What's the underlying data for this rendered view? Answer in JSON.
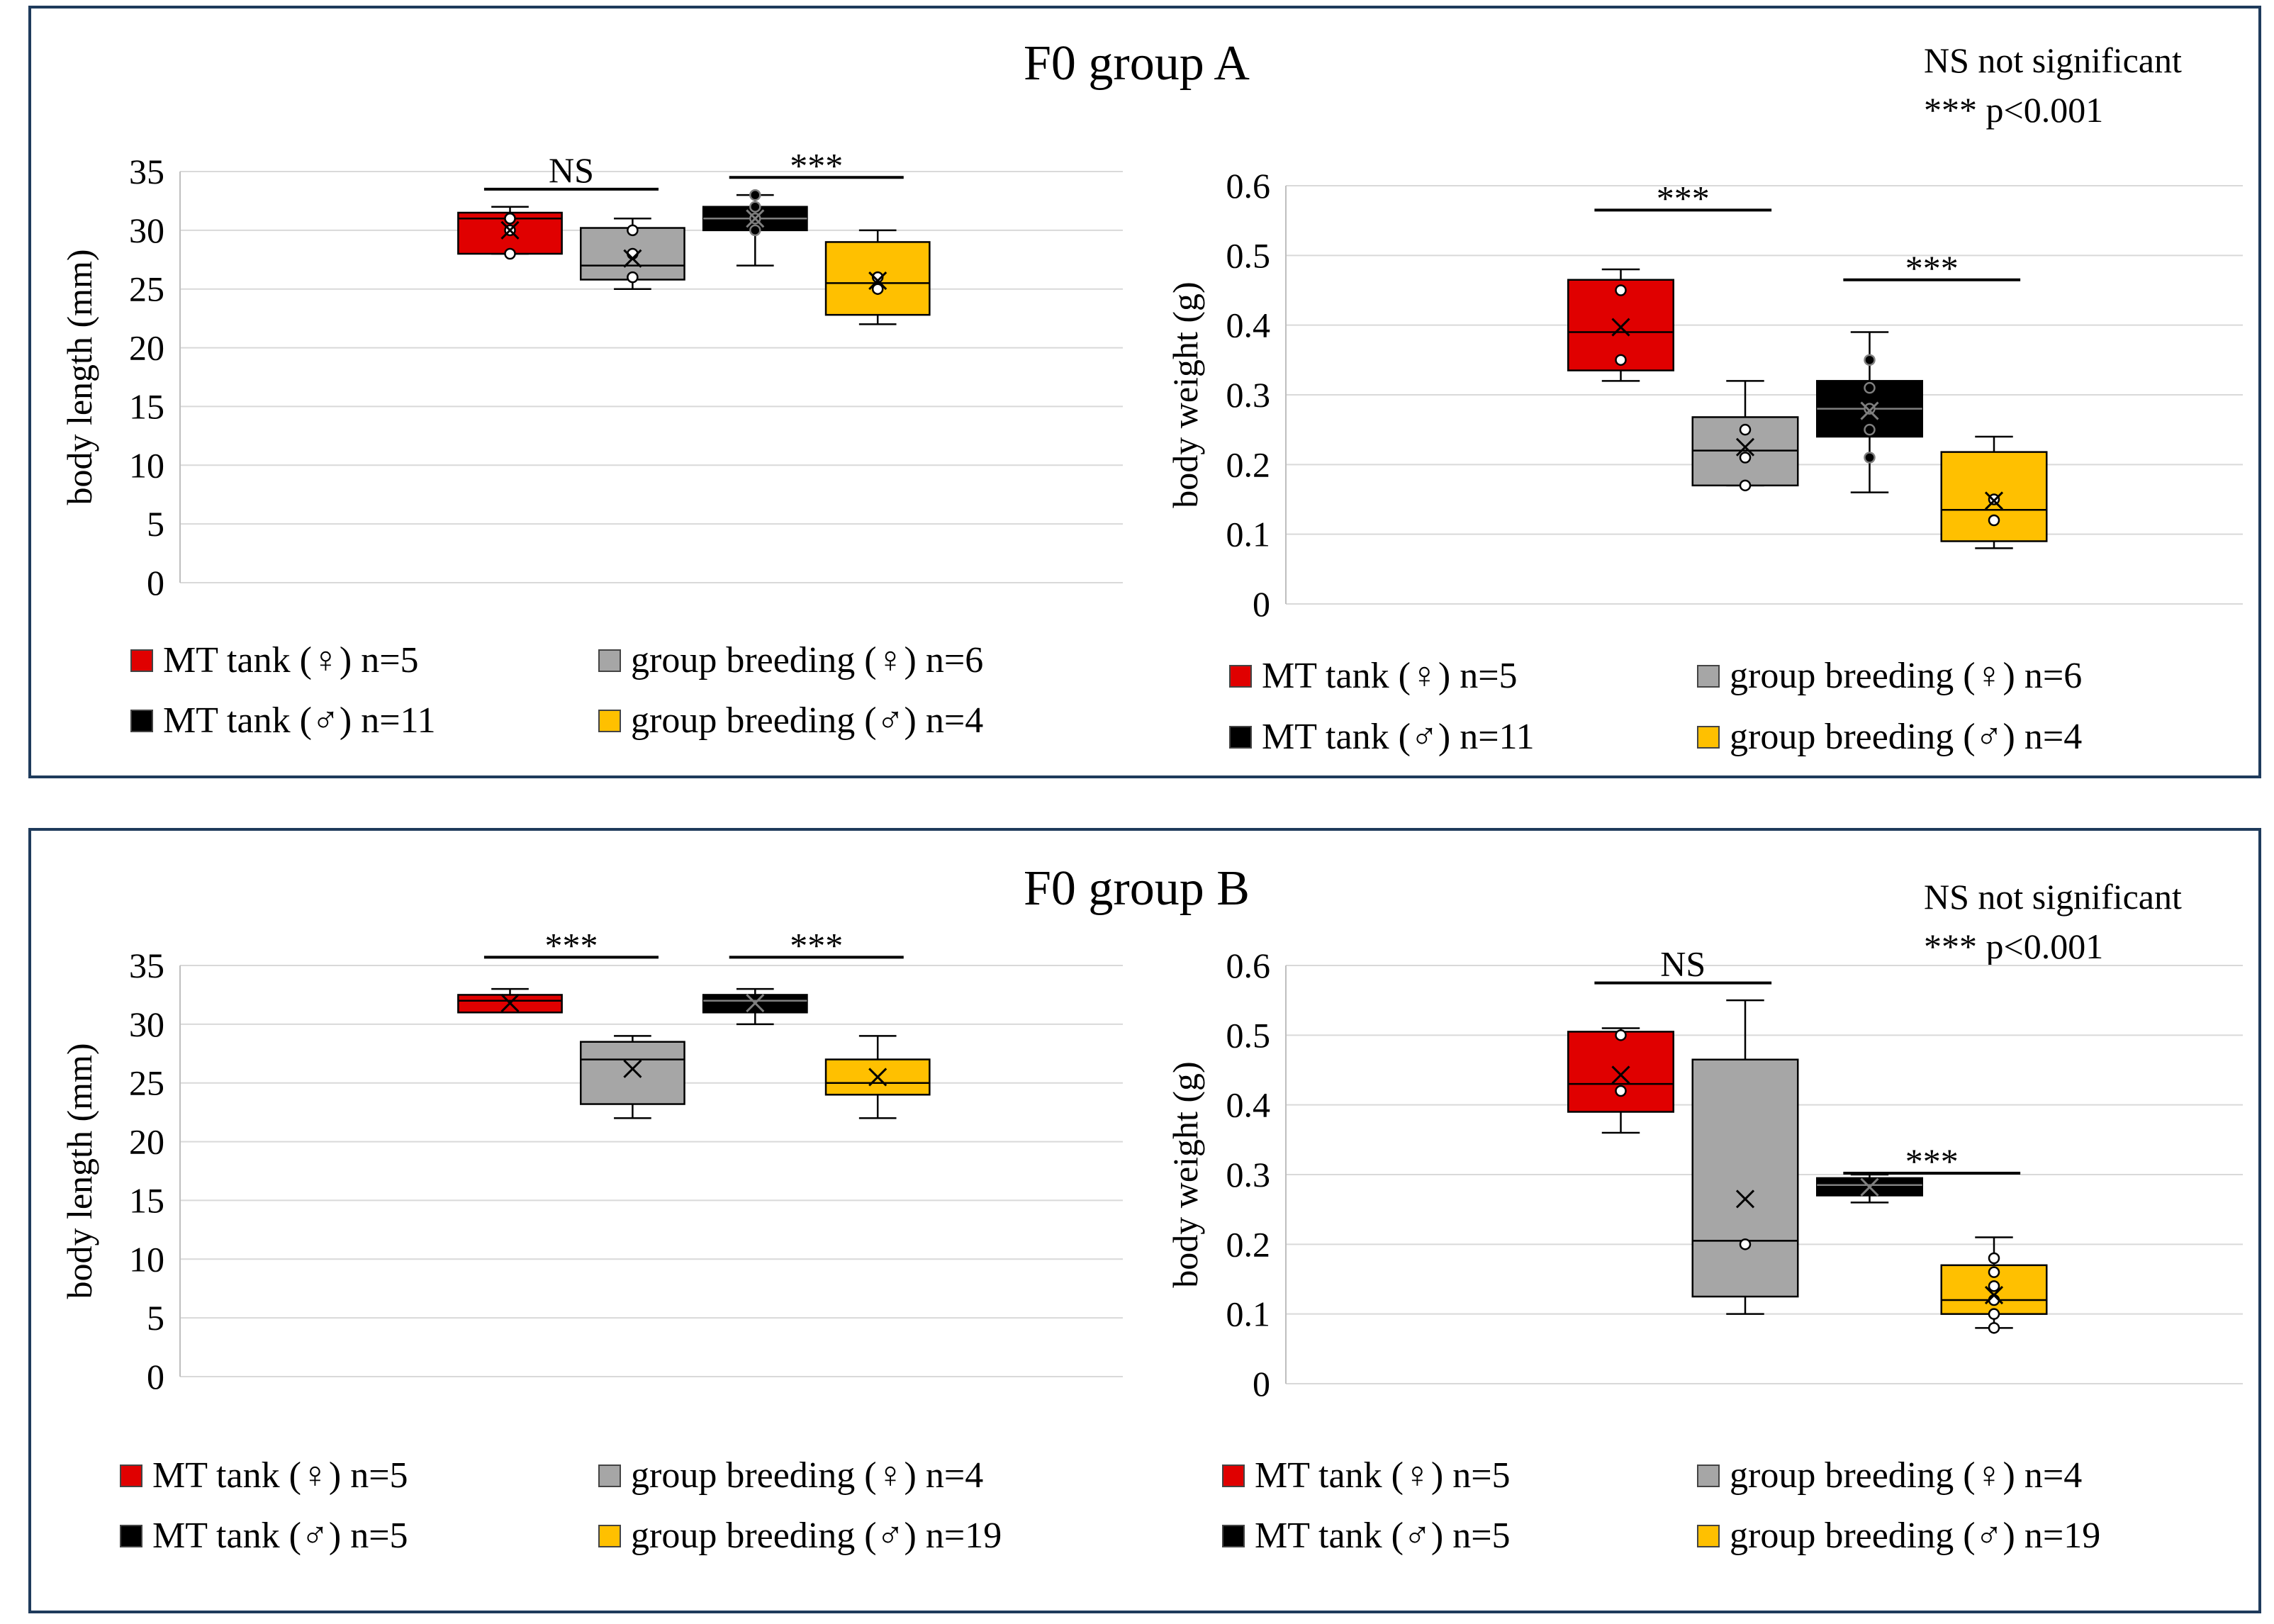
{
  "colors": {
    "red": "#e00000",
    "gray": "#a6a6a6",
    "black": "#000000",
    "yellow": "#ffc000",
    "frame": "#1f3b5c"
  },
  "panels": [
    {
      "title": "F0 group A",
      "note_ns": "NS not significant",
      "note_p": "*** p<0.001",
      "legend_len": [
        "MT tank (♀) n=5",
        "group breeding (♀) n=6",
        "MT tank (♂) n=11",
        "group breeding (♂) n=4"
      ],
      "legend_wt": [
        "MT tank (♀) n=5",
        "group breeding (♀) n=6",
        "MT tank (♂) n=11",
        "group breeding (♂) n=4"
      ]
    },
    {
      "title": "F0 group B",
      "note_ns": "NS not significant",
      "note_p": "*** p<0.001",
      "legend_len": [
        "MT tank (♀) n=5",
        "group breeding (♀) n=4",
        "MT tank (♂) n=5",
        "group breeding (♂) n=19"
      ],
      "legend_wt": [
        "MT tank (♀) n=5",
        "group breeding (♀) n=4",
        "MT tank (♂) n=5",
        "group breeding (♂) n=19"
      ]
    }
  ],
  "chart_data": [
    {
      "id": "A-length",
      "type": "box",
      "panel": "F0 group A",
      "ylabel": "body length (mm)",
      "ylim": [
        0,
        35
      ],
      "yticks": [
        "0",
        "5",
        "10",
        "15",
        "20",
        "25",
        "30",
        "35"
      ],
      "yticks_values": [
        0,
        5,
        10,
        15,
        20,
        25,
        30,
        35
      ],
      "boxes": [
        {
          "color": "red",
          "min": 28,
          "q1": 28,
          "median": 31,
          "q3": 31.5,
          "max": 32,
          "mean": 30,
          "points": [
            28,
            30,
            31,
            31
          ]
        },
        {
          "color": "gray",
          "min": 25,
          "q1": 25.8,
          "median": 27,
          "q3": 30.2,
          "max": 31,
          "mean": 27.6,
          "points": [
            26,
            28,
            30
          ]
        },
        {
          "color": "black",
          "min": 27,
          "q1": 30,
          "median": 31,
          "q3": 32,
          "max": 33,
          "mean": 31,
          "points": [
            30,
            31,
            32,
            33
          ]
        },
        {
          "color": "yellow",
          "min": 22,
          "q1": 22.8,
          "median": 25.5,
          "q3": 29,
          "max": 30,
          "mean": 25.7,
          "points": [
            25,
            26
          ]
        }
      ],
      "sig": [
        {
          "label": "NS",
          "from": 0,
          "to": 1,
          "y": 33.5
        },
        {
          "label": "***",
          "from": 2,
          "to": 3,
          "y": 34.5
        }
      ]
    },
    {
      "id": "A-weight",
      "type": "box",
      "panel": "F0 group A",
      "ylabel": "body weight (g)",
      "ylim": [
        0,
        0.6
      ],
      "yticks": [
        "0",
        "0.1",
        "0.2",
        "0.3",
        "0.4",
        "0.5",
        "0.6"
      ],
      "yticks_values": [
        0,
        0.1,
        0.2,
        0.3,
        0.4,
        0.5,
        0.6
      ],
      "boxes": [
        {
          "color": "red",
          "min": 0.32,
          "q1": 0.335,
          "median": 0.39,
          "q3": 0.465,
          "max": 0.48,
          "mean": 0.397,
          "points": [
            0.35,
            0.45
          ]
        },
        {
          "color": "gray",
          "min": 0.17,
          "q1": 0.17,
          "median": 0.22,
          "q3": 0.268,
          "max": 0.32,
          "mean": 0.225,
          "points": [
            0.17,
            0.21,
            0.25
          ]
        },
        {
          "color": "black",
          "min": 0.16,
          "q1": 0.24,
          "median": 0.28,
          "q3": 0.32,
          "max": 0.39,
          "mean": 0.277,
          "points": [
            0.21,
            0.25,
            0.28,
            0.31,
            0.35
          ]
        },
        {
          "color": "yellow",
          "min": 0.08,
          "q1": 0.09,
          "median": 0.135,
          "q3": 0.218,
          "max": 0.24,
          "mean": 0.148,
          "points": [
            0.12,
            0.15
          ]
        }
      ],
      "sig": [
        {
          "label": "***",
          "from": 0,
          "to": 1,
          "y": 0.565
        },
        {
          "label": "***",
          "from": 2,
          "to": 3,
          "y": 0.465
        }
      ]
    },
    {
      "id": "B-length",
      "type": "box",
      "panel": "F0 group B",
      "ylabel": "body length (mm)",
      "ylim": [
        0,
        35
      ],
      "yticks": [
        "0",
        "5",
        "10",
        "15",
        "20",
        "25",
        "30",
        "35"
      ],
      "yticks_values": [
        0,
        5,
        10,
        15,
        20,
        25,
        30,
        35
      ],
      "boxes": [
        {
          "color": "red",
          "min": 31,
          "q1": 31,
          "median": 32,
          "q3": 32.5,
          "max": 33,
          "mean": 31.8,
          "points": []
        },
        {
          "color": "gray",
          "min": 22,
          "q1": 23.2,
          "median": 27,
          "q3": 28.5,
          "max": 29,
          "mean": 26.2,
          "points": []
        },
        {
          "color": "black",
          "min": 30,
          "q1": 31,
          "median": 32,
          "q3": 32.5,
          "max": 33,
          "mean": 31.8,
          "points": []
        },
        {
          "color": "yellow",
          "min": 22,
          "q1": 24,
          "median": 25,
          "q3": 27,
          "max": 29,
          "mean": 25.5,
          "points": []
        }
      ],
      "sig": [
        {
          "label": "***",
          "from": 0,
          "to": 1,
          "y": 35.7
        },
        {
          "label": "***",
          "from": 2,
          "to": 3,
          "y": 35.7
        }
      ]
    },
    {
      "id": "B-weight",
      "type": "box",
      "panel": "F0 group B",
      "ylabel": "body weight (g)",
      "ylim": [
        0,
        0.6
      ],
      "yticks": [
        "0",
        "0.1",
        "0.2",
        "0.3",
        "0.4",
        "0.5",
        "0.6"
      ],
      "yticks_values": [
        0,
        0.1,
        0.2,
        0.3,
        0.4,
        0.5,
        0.6
      ],
      "boxes": [
        {
          "color": "red",
          "min": 0.36,
          "q1": 0.39,
          "median": 0.43,
          "q3": 0.505,
          "max": 0.51,
          "mean": 0.443,
          "points": [
            0.42,
            0.5
          ]
        },
        {
          "color": "gray",
          "min": 0.1,
          "q1": 0.125,
          "median": 0.205,
          "q3": 0.465,
          "max": 0.55,
          "mean": 0.265,
          "points": [
            0.2
          ]
        },
        {
          "color": "black",
          "min": 0.26,
          "q1": 0.27,
          "median": 0.285,
          "q3": 0.295,
          "max": 0.3,
          "mean": 0.282,
          "points": []
        },
        {
          "color": "yellow",
          "min": 0.08,
          "q1": 0.1,
          "median": 0.12,
          "q3": 0.17,
          "max": 0.21,
          "mean": 0.127,
          "points": [
            0.08,
            0.1,
            0.12,
            0.14,
            0.16,
            0.18
          ]
        }
      ],
      "sig": [
        {
          "label": "NS",
          "from": 0,
          "to": 1,
          "y": 0.575
        },
        {
          "label": "***",
          "from": 2,
          "to": 3,
          "y": 0.302
        }
      ]
    }
  ]
}
